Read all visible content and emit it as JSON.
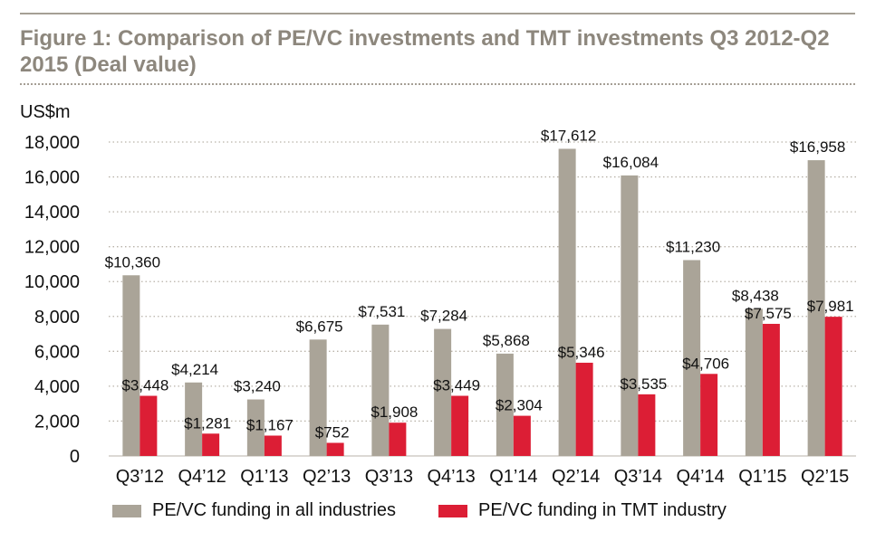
{
  "title": "Figure 1: Comparison of PE/VC investments and TMT investments Q3 2012-Q2 2015 (Deal value)",
  "chart_data": {
    "type": "bar",
    "ylabel": "US$m",
    "ylim": [
      0,
      18000
    ],
    "yticks": [
      "0",
      "2,000",
      "4,000",
      "6,000",
      "8,000",
      "10,000",
      "12,000",
      "14,000",
      "16,000",
      "18,000"
    ],
    "grid": "horizontal dotted",
    "legend_position": "bottom",
    "categories": [
      "Q3’12",
      "Q4’12",
      "Q1’13",
      "Q2’13",
      "Q3’13",
      "Q4’13",
      "Q1’14",
      "Q2’14",
      "Q3’14",
      "Q4’14",
      "Q1’15",
      "Q2’15"
    ],
    "series": [
      {
        "name": "PE/VC funding in all industries",
        "color": "#aaa498",
        "values": [
          10360,
          4214,
          3240,
          6675,
          7531,
          7284,
          5868,
          17612,
          16084,
          11230,
          8438,
          16958
        ],
        "labels": [
          "$10,360",
          "$4,214",
          "$3,240",
          "$6,675",
          "$7,531",
          "$7,284",
          "$5,868",
          "$17,612",
          "$16,084",
          "$11,230",
          "$8,438",
          "$16,958"
        ]
      },
      {
        "name": "PE/VC funding in TMT industry",
        "color": "#dc1e35",
        "values": [
          3448,
          1281,
          1167,
          752,
          1908,
          3449,
          2304,
          5346,
          3535,
          4706,
          7575,
          7981
        ],
        "labels": [
          "$3,448",
          "$1,281",
          "$1,167",
          "$752",
          "$1,908",
          "$3,449",
          "$2,304",
          "$5,346",
          "$3,535",
          "$4,706",
          "$7,575",
          "$7,981"
        ]
      }
    ]
  }
}
